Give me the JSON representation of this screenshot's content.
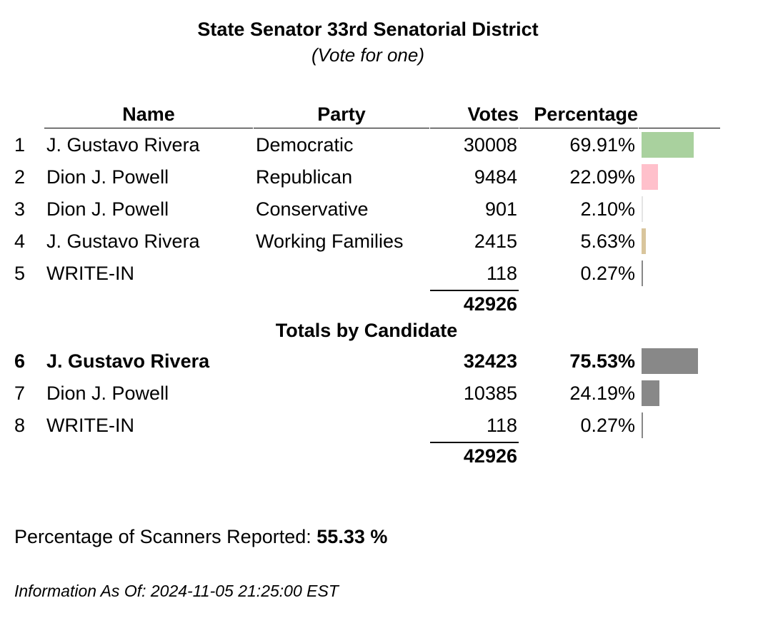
{
  "title": "State Senator 33rd Senatorial District",
  "subtitle": "(Vote for one)",
  "headers": {
    "name": "Name",
    "party": "Party",
    "votes": "Votes",
    "percentage": "Percentage"
  },
  "rows": [
    {
      "num": "1",
      "name": "J. Gustavo Rivera",
      "party": "Democratic",
      "votes": "30008",
      "percent": "69.91%",
      "bar_color": "#a9d19e",
      "bar_fraction": 0.6991
    },
    {
      "num": "2",
      "name": "Dion J. Powell",
      "party": "Republican",
      "votes": "9484",
      "percent": "22.09%",
      "bar_color": "#ffc0cb",
      "bar_fraction": 0.2209
    },
    {
      "num": "3",
      "name": "Dion J. Powell",
      "party": "Conservative",
      "votes": "901",
      "percent": "2.10%",
      "bar_color": "#e4e4e4",
      "bar_fraction": 0.021
    },
    {
      "num": "4",
      "name": "J. Gustavo Rivera",
      "party": "Working Families",
      "votes": "2415",
      "percent": "5.63%",
      "bar_color": "#d9c59c",
      "bar_fraction": 0.0563
    },
    {
      "num": "5",
      "name": "WRITE-IN",
      "party": "",
      "votes": "118",
      "percent": "0.27%",
      "bar_color": "#888888",
      "bar_fraction": 0.0027
    }
  ],
  "party_total": "42926",
  "candidate_section_title": "Totals by Candidate",
  "candidate_rows": [
    {
      "num": "6",
      "name": "J. Gustavo Rivera",
      "votes": "32423",
      "percent": "75.53%",
      "bar_color": "#888888",
      "bar_fraction": 0.7553,
      "winner": true
    },
    {
      "num": "7",
      "name": "Dion J. Powell",
      "votes": "10385",
      "percent": "24.19%",
      "bar_color": "#888888",
      "bar_fraction": 0.2419,
      "winner": false
    },
    {
      "num": "8",
      "name": "WRITE-IN",
      "votes": "118",
      "percent": "0.27%",
      "bar_color": "#888888",
      "bar_fraction": 0.0027,
      "winner": false
    }
  ],
  "candidate_total": "42926",
  "scanners": {
    "label": "Percentage of Scanners Reported:",
    "value": "55.33 %"
  },
  "info": "Information As Of: 2024-11-05 21:25:00 EST"
}
